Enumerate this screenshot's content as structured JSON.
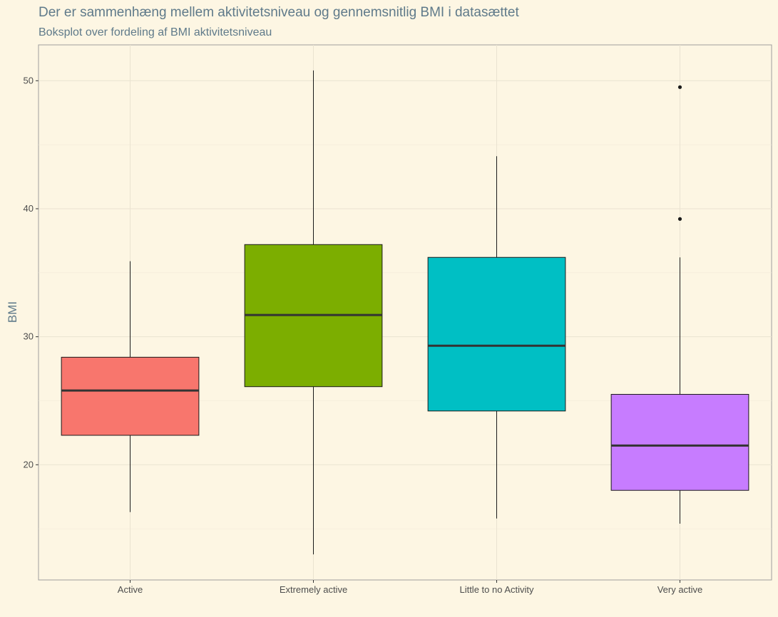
{
  "chart_data": {
    "type": "boxplot",
    "title": "Der er sammenhæng mellem aktivitetsniveau og gennemsnitlig BMI i datasættet",
    "subtitle": "Boksplot over fordeling af BMI aktivitetsniveau",
    "xlabel": "",
    "ylabel": "BMI",
    "ylim": [
      11,
      52.8
    ],
    "yticks": [
      20,
      30,
      40,
      50
    ],
    "grid": true,
    "legend": "none",
    "categories": [
      "Active",
      "Extremely active",
      "Little to no Activity",
      "Very active"
    ],
    "boxes": [
      {
        "category": "Active",
        "min": 16.3,
        "q1": 22.3,
        "median": 25.8,
        "q3": 28.4,
        "max": 35.9,
        "outliers": [],
        "color": "#F8766D"
      },
      {
        "category": "Extremely active",
        "min": 13.0,
        "q1": 26.1,
        "median": 31.7,
        "q3": 37.2,
        "max": 50.8,
        "outliers": [],
        "color": "#7CAE00"
      },
      {
        "category": "Little to no Activity",
        "min": 15.8,
        "q1": 24.2,
        "median": 29.3,
        "q3": 36.2,
        "max": 44.1,
        "outliers": [],
        "color": "#00BFC4"
      },
      {
        "category": "Very active",
        "min": 15.4,
        "q1": 18.0,
        "median": 21.5,
        "q3": 25.5,
        "max": 36.2,
        "outliers": [
          39.2,
          49.5
        ],
        "color": "#C77CFF"
      }
    ]
  }
}
